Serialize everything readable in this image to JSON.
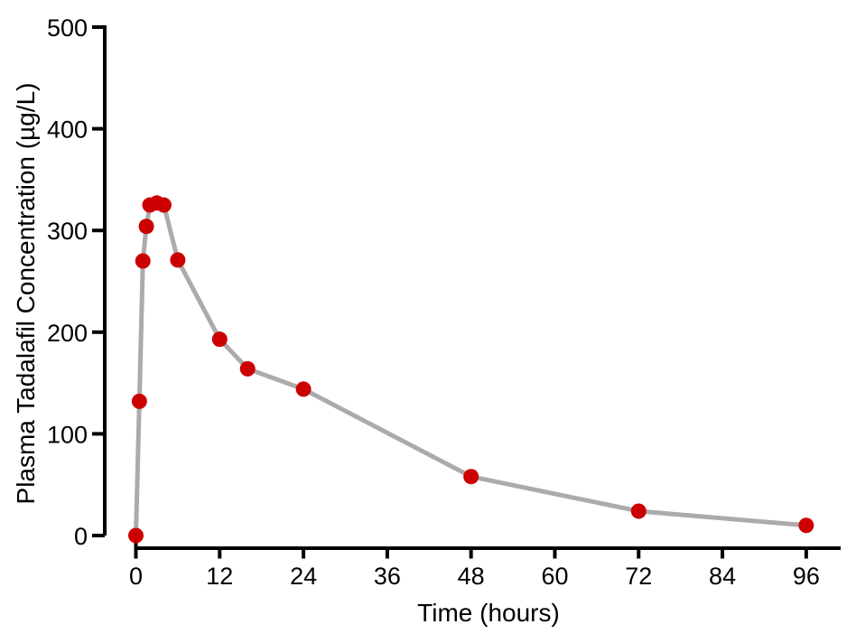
{
  "chart_data": {
    "type": "line",
    "title": "",
    "xlabel": "Time (hours)",
    "ylabel": "Plasma Tadalafil Concentration (µg/L)",
    "x": [
      0,
      0.5,
      1,
      1.5,
      2,
      3,
      4,
      6,
      12,
      16,
      24,
      48,
      72,
      96
    ],
    "series": [
      {
        "name": "Plasma tadalafil concentration",
        "values": [
          0,
          132,
          270,
          304,
          325,
          327,
          325,
          271,
          193,
          164,
          144,
          58,
          24,
          10
        ]
      }
    ],
    "xticks": [
      0,
      12,
      24,
      36,
      48,
      60,
      72,
      84,
      96
    ],
    "yticks": [
      0,
      100,
      200,
      300,
      400,
      500
    ],
    "xlim": [
      0,
      96
    ],
    "ylim": [
      0,
      500
    ],
    "grid": false,
    "legend": "none",
    "marker": "circle",
    "marker_color": "#CC0000",
    "line_color": "#ABABAB",
    "axis_color": "#000000"
  }
}
